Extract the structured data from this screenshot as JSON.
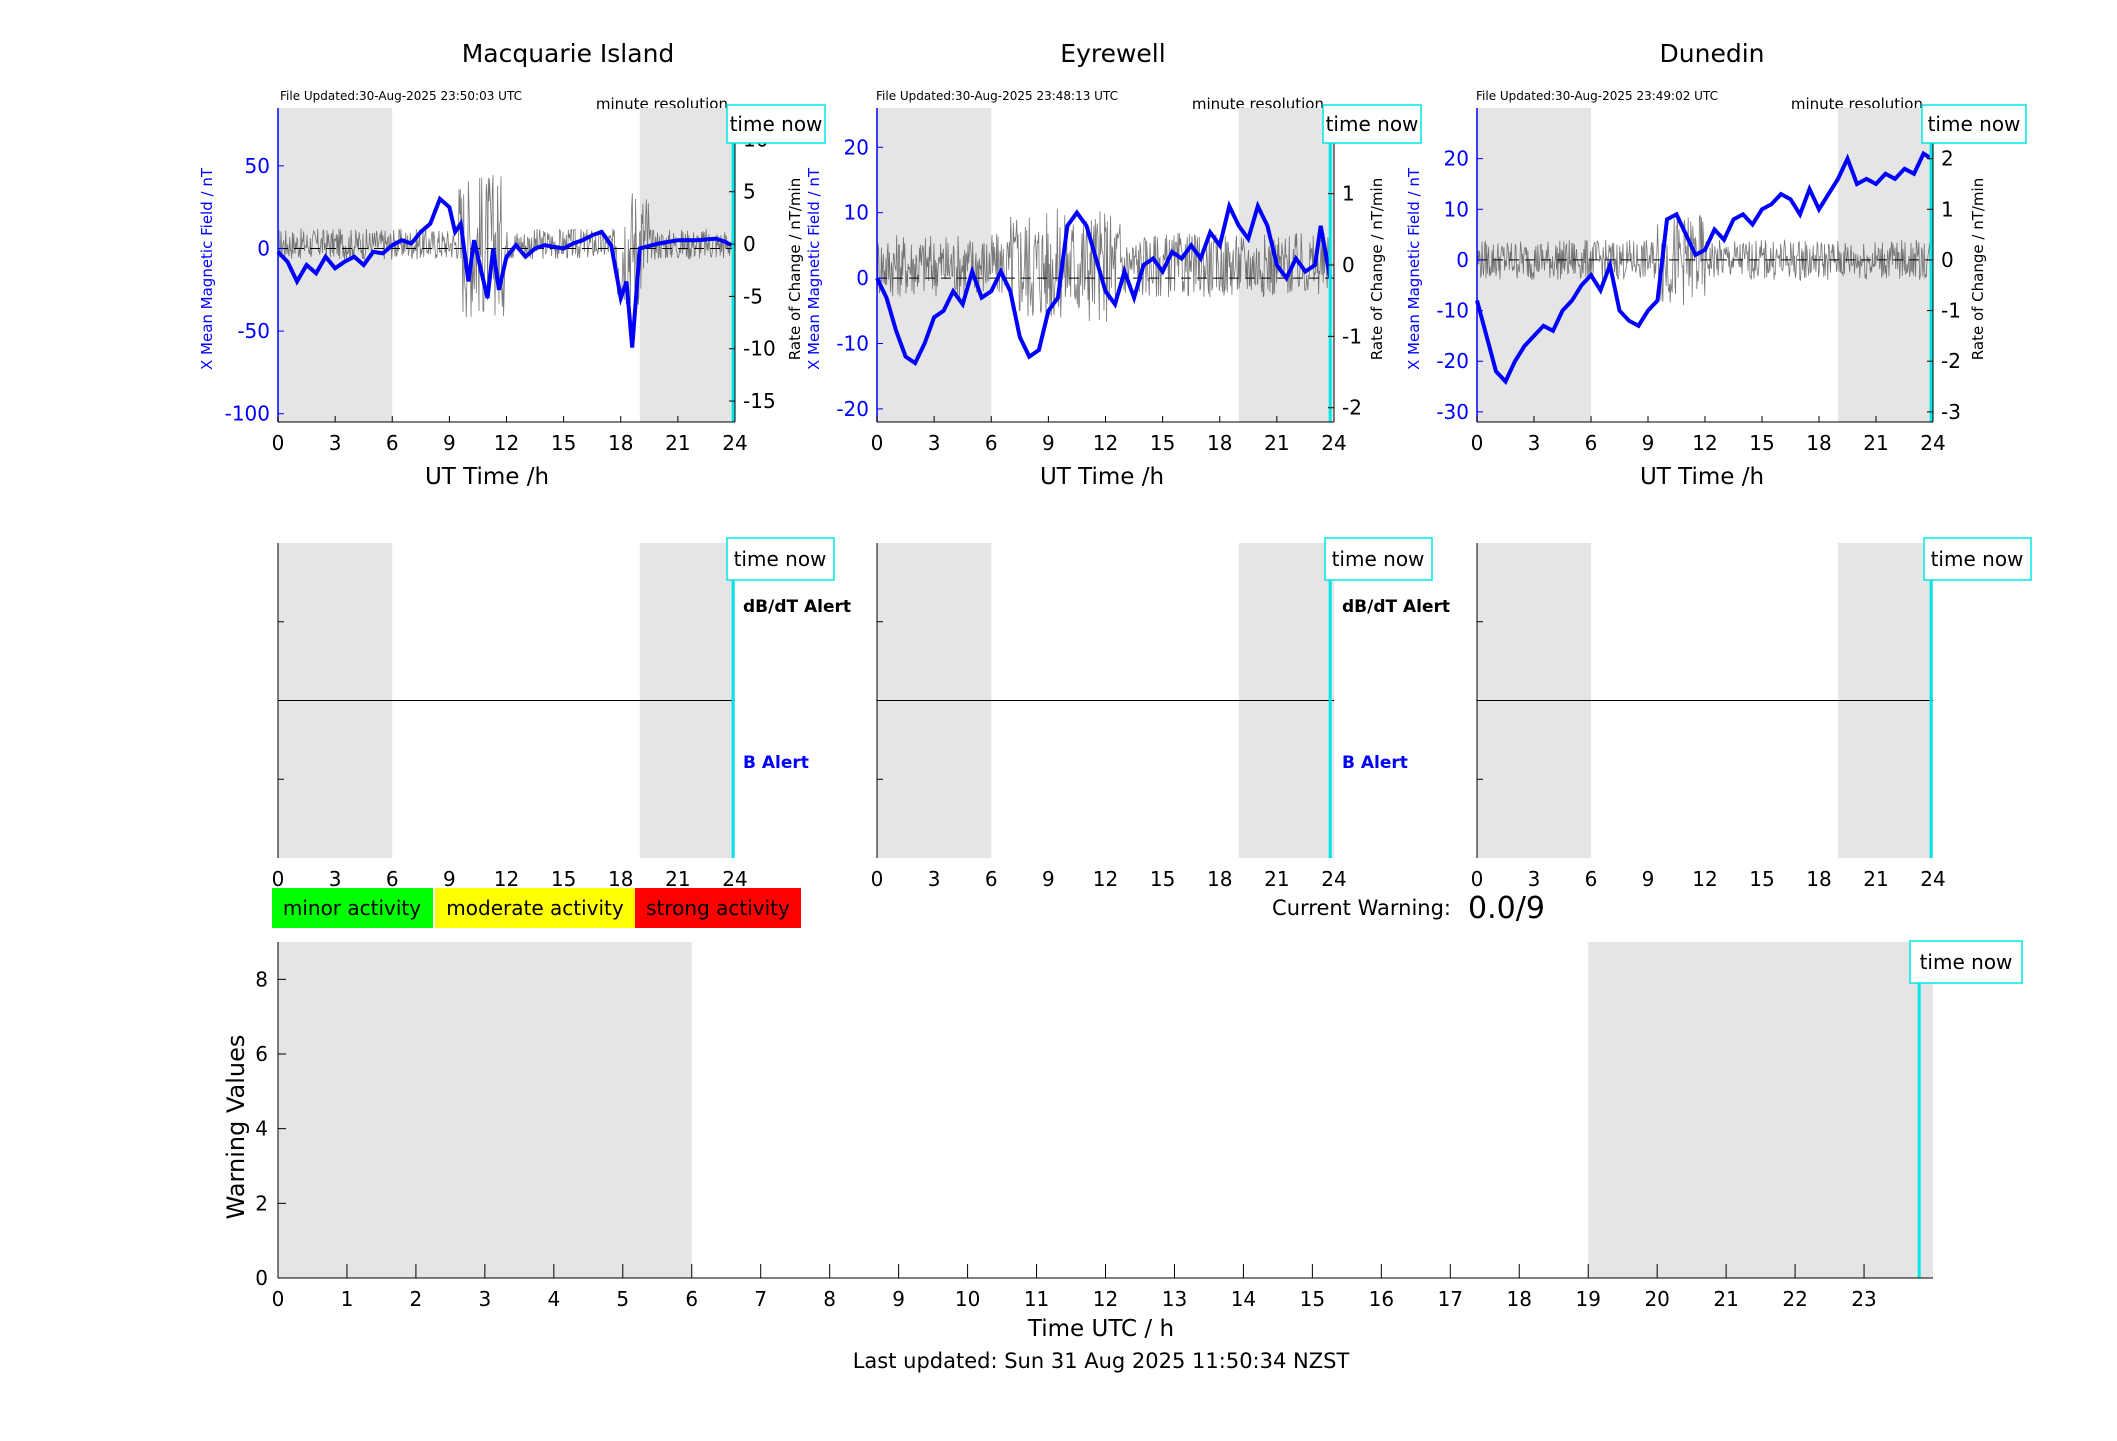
{
  "stations": [
    {
      "name": "Macquarie Island",
      "file_updated": "File Updated:30-Aug-2025 23:50:03 UTC",
      "resolution": "minute resolution"
    },
    {
      "name": "Eyrewell",
      "file_updated": "File Updated:30-Aug-2025 23:48:13 UTC",
      "resolution": "minute resolution"
    },
    {
      "name": "Dunedin",
      "file_updated": "File Updated:30-Aug-2025 23:49:02 UTC",
      "resolution": "minute resolution"
    }
  ],
  "labels": {
    "time_now": "time now",
    "ut_time": "UT Time /h",
    "left_axis": "X Mean Magnetic Field / nT",
    "right_axis": "Rate of Change / nT/min",
    "dbdt_alert": "dB/dT Alert",
    "b_alert": "B Alert",
    "current_warning_label": "Current Warning:",
    "current_warning_value": "0.0/9",
    "warning_ylabel": "Warning Values",
    "warning_xlabel": "Time UTC / h",
    "last_updated": "Last updated: Sun 31 Aug 2025 11:50:34 NZST"
  },
  "legend": [
    {
      "label": "minor activity",
      "color": "#00ff00"
    },
    {
      "label": "moderate activity",
      "color": "#ffff00"
    },
    {
      "label": "strong activity",
      "color": "#ff0000"
    }
  ],
  "colors": {
    "field": "#0000ff",
    "rate": "#555555",
    "now": "#00e5e5",
    "shade": "#e5e5e5"
  },
  "chart_data": [
    {
      "type": "line",
      "title": "Macquarie Island",
      "xlim": [
        0,
        24
      ],
      "xticks": [
        0,
        3,
        6,
        9,
        12,
        15,
        18,
        21,
        24
      ],
      "ylim": [
        -105,
        85
      ],
      "yticks": [
        50,
        0,
        -50,
        -100
      ],
      "y2lim": [
        -17,
        13
      ],
      "y2ticks": [
        10,
        5,
        0,
        -5,
        -10,
        -15
      ],
      "shaded": [
        [
          0,
          6
        ],
        [
          19,
          24
        ]
      ],
      "time_now": 23.9,
      "series": [
        {
          "values": [
            [
              0,
              -2
            ],
            [
              0.5,
              -8
            ],
            [
              1,
              -20
            ],
            [
              1.5,
              -10
            ],
            [
              2,
              -15
            ],
            [
              2.5,
              -5
            ],
            [
              3,
              -12
            ],
            [
              3.5,
              -8
            ],
            [
              4,
              -5
            ],
            [
              4.5,
              -10
            ],
            [
              5,
              -2
            ],
            [
              5.5,
              -3
            ],
            [
              6,
              2
            ],
            [
              6.5,
              5
            ],
            [
              7,
              3
            ],
            [
              7.5,
              10
            ],
            [
              8,
              15
            ],
            [
              8.5,
              30
            ],
            [
              9,
              25
            ],
            [
              9.3,
              10
            ],
            [
              9.6,
              15
            ],
            [
              10,
              -20
            ],
            [
              10.3,
              5
            ],
            [
              10.6,
              -10
            ],
            [
              11,
              -30
            ],
            [
              11.3,
              0
            ],
            [
              11.6,
              -25
            ],
            [
              12,
              -5
            ],
            [
              12.5,
              2
            ],
            [
              13,
              -5
            ],
            [
              13.5,
              0
            ],
            [
              14,
              2
            ],
            [
              15,
              0
            ],
            [
              15.5,
              3
            ],
            [
              16,
              5
            ],
            [
              16.5,
              8
            ],
            [
              17,
              10
            ],
            [
              17.5,
              2
            ],
            [
              18,
              -30
            ],
            [
              18.3,
              -20
            ],
            [
              18.6,
              -60
            ],
            [
              19,
              0
            ],
            [
              20,
              3
            ],
            [
              21,
              5
            ],
            [
              22,
              5
            ],
            [
              23,
              6
            ],
            [
              23.5,
              4
            ],
            [
              23.8,
              2
            ]
          ]
        }
      ]
    },
    {
      "type": "line",
      "title": "Eyrewell",
      "xlim": [
        0,
        24
      ],
      "xticks": [
        0,
        3,
        6,
        9,
        12,
        15,
        18,
        21,
        24
      ],
      "ylim": [
        -22,
        26
      ],
      "yticks": [
        20,
        10,
        0,
        -10,
        -20
      ],
      "y2lim": [
        -2.2,
        2.2
      ],
      "y2ticks": [
        2,
        1,
        0,
        -1,
        -2
      ],
      "shaded": [
        [
          0,
          6
        ],
        [
          19,
          24
        ]
      ],
      "time_now": 23.8,
      "series": [
        {
          "values": [
            [
              0,
              0
            ],
            [
              0.5,
              -3
            ],
            [
              1,
              -8
            ],
            [
              1.5,
              -12
            ],
            [
              2,
              -13
            ],
            [
              2.5,
              -10
            ],
            [
              3,
              -6
            ],
            [
              3.5,
              -5
            ],
            [
              4,
              -2
            ],
            [
              4.5,
              -4
            ],
            [
              5,
              1
            ],
            [
              5.5,
              -3
            ],
            [
              6,
              -2
            ],
            [
              6.5,
              1
            ],
            [
              7,
              -2
            ],
            [
              7.5,
              -9
            ],
            [
              8,
              -12
            ],
            [
              8.5,
              -11
            ],
            [
              9,
              -5
            ],
            [
              9.5,
              -3
            ],
            [
              10,
              8
            ],
            [
              10.5,
              10
            ],
            [
              11,
              8
            ],
            [
              11.5,
              3
            ],
            [
              12,
              -2
            ],
            [
              12.5,
              -4
            ],
            [
              13,
              1
            ],
            [
              13.5,
              -3
            ],
            [
              14,
              2
            ],
            [
              14.5,
              3
            ],
            [
              15,
              1
            ],
            [
              15.5,
              4
            ],
            [
              16,
              3
            ],
            [
              16.5,
              5
            ],
            [
              17,
              3
            ],
            [
              17.5,
              7
            ],
            [
              18,
              5
            ],
            [
              18.5,
              11
            ],
            [
              19,
              8
            ],
            [
              19.5,
              6
            ],
            [
              20,
              11
            ],
            [
              20.5,
              8
            ],
            [
              21,
              2
            ],
            [
              21.5,
              0
            ],
            [
              22,
              3
            ],
            [
              22.5,
              1
            ],
            [
              23,
              2
            ],
            [
              23.3,
              8
            ],
            [
              23.8,
              0
            ]
          ]
        }
      ]
    },
    {
      "type": "line",
      "title": "Dunedin",
      "xlim": [
        0,
        24
      ],
      "xticks": [
        0,
        3,
        6,
        9,
        12,
        15,
        18,
        21,
        24
      ],
      "ylim": [
        -32,
        30
      ],
      "yticks": [
        20,
        10,
        0,
        -10,
        -20,
        -30
      ],
      "y2lim": [
        -3.2,
        3.0
      ],
      "y2ticks": [
        2,
        1,
        0,
        -1,
        -2,
        -3
      ],
      "shaded": [
        [
          0,
          6
        ],
        [
          19,
          24
        ]
      ],
      "time_now": 23.9,
      "series": [
        {
          "values": [
            [
              0,
              -8
            ],
            [
              0.5,
              -15
            ],
            [
              1,
              -22
            ],
            [
              1.5,
              -24
            ],
            [
              2,
              -20
            ],
            [
              2.5,
              -17
            ],
            [
              3,
              -15
            ],
            [
              3.5,
              -13
            ],
            [
              4,
              -14
            ],
            [
              4.5,
              -10
            ],
            [
              5,
              -8
            ],
            [
              5.5,
              -5
            ],
            [
              6,
              -3
            ],
            [
              6.5,
              -6
            ],
            [
              7,
              -1
            ],
            [
              7.5,
              -10
            ],
            [
              8,
              -12
            ],
            [
              8.5,
              -13
            ],
            [
              9,
              -10
            ],
            [
              9.5,
              -8
            ],
            [
              10,
              8
            ],
            [
              10.5,
              9
            ],
            [
              11,
              5
            ],
            [
              11.5,
              1
            ],
            [
              12,
              2
            ],
            [
              12.5,
              6
            ],
            [
              13,
              4
            ],
            [
              13.5,
              8
            ],
            [
              14,
              9
            ],
            [
              14.5,
              7
            ],
            [
              15,
              10
            ],
            [
              15.5,
              11
            ],
            [
              16,
              13
            ],
            [
              16.5,
              12
            ],
            [
              17,
              9
            ],
            [
              17.5,
              14
            ],
            [
              18,
              10
            ],
            [
              18.5,
              13
            ],
            [
              19,
              16
            ],
            [
              19.5,
              20
            ],
            [
              20,
              15
            ],
            [
              20.5,
              16
            ],
            [
              21,
              15
            ],
            [
              21.5,
              17
            ],
            [
              22,
              16
            ],
            [
              22.5,
              18
            ],
            [
              23,
              17
            ],
            [
              23.5,
              21
            ],
            [
              23.9,
              20
            ]
          ]
        }
      ]
    },
    {
      "type": "line",
      "xlim": [
        0,
        24
      ],
      "ylim": [
        0,
        9
      ],
      "xticks": [
        0,
        1,
        2,
        3,
        4,
        5,
        6,
        7,
        8,
        9,
        10,
        11,
        12,
        13,
        14,
        15,
        16,
        17,
        18,
        19,
        20,
        21,
        22,
        23
      ],
      "yticks": [
        0,
        2,
        4,
        6,
        8
      ],
      "shaded": [
        [
          0,
          6
        ],
        [
          19,
          24
        ]
      ],
      "time_now": 23.8,
      "series": []
    }
  ]
}
